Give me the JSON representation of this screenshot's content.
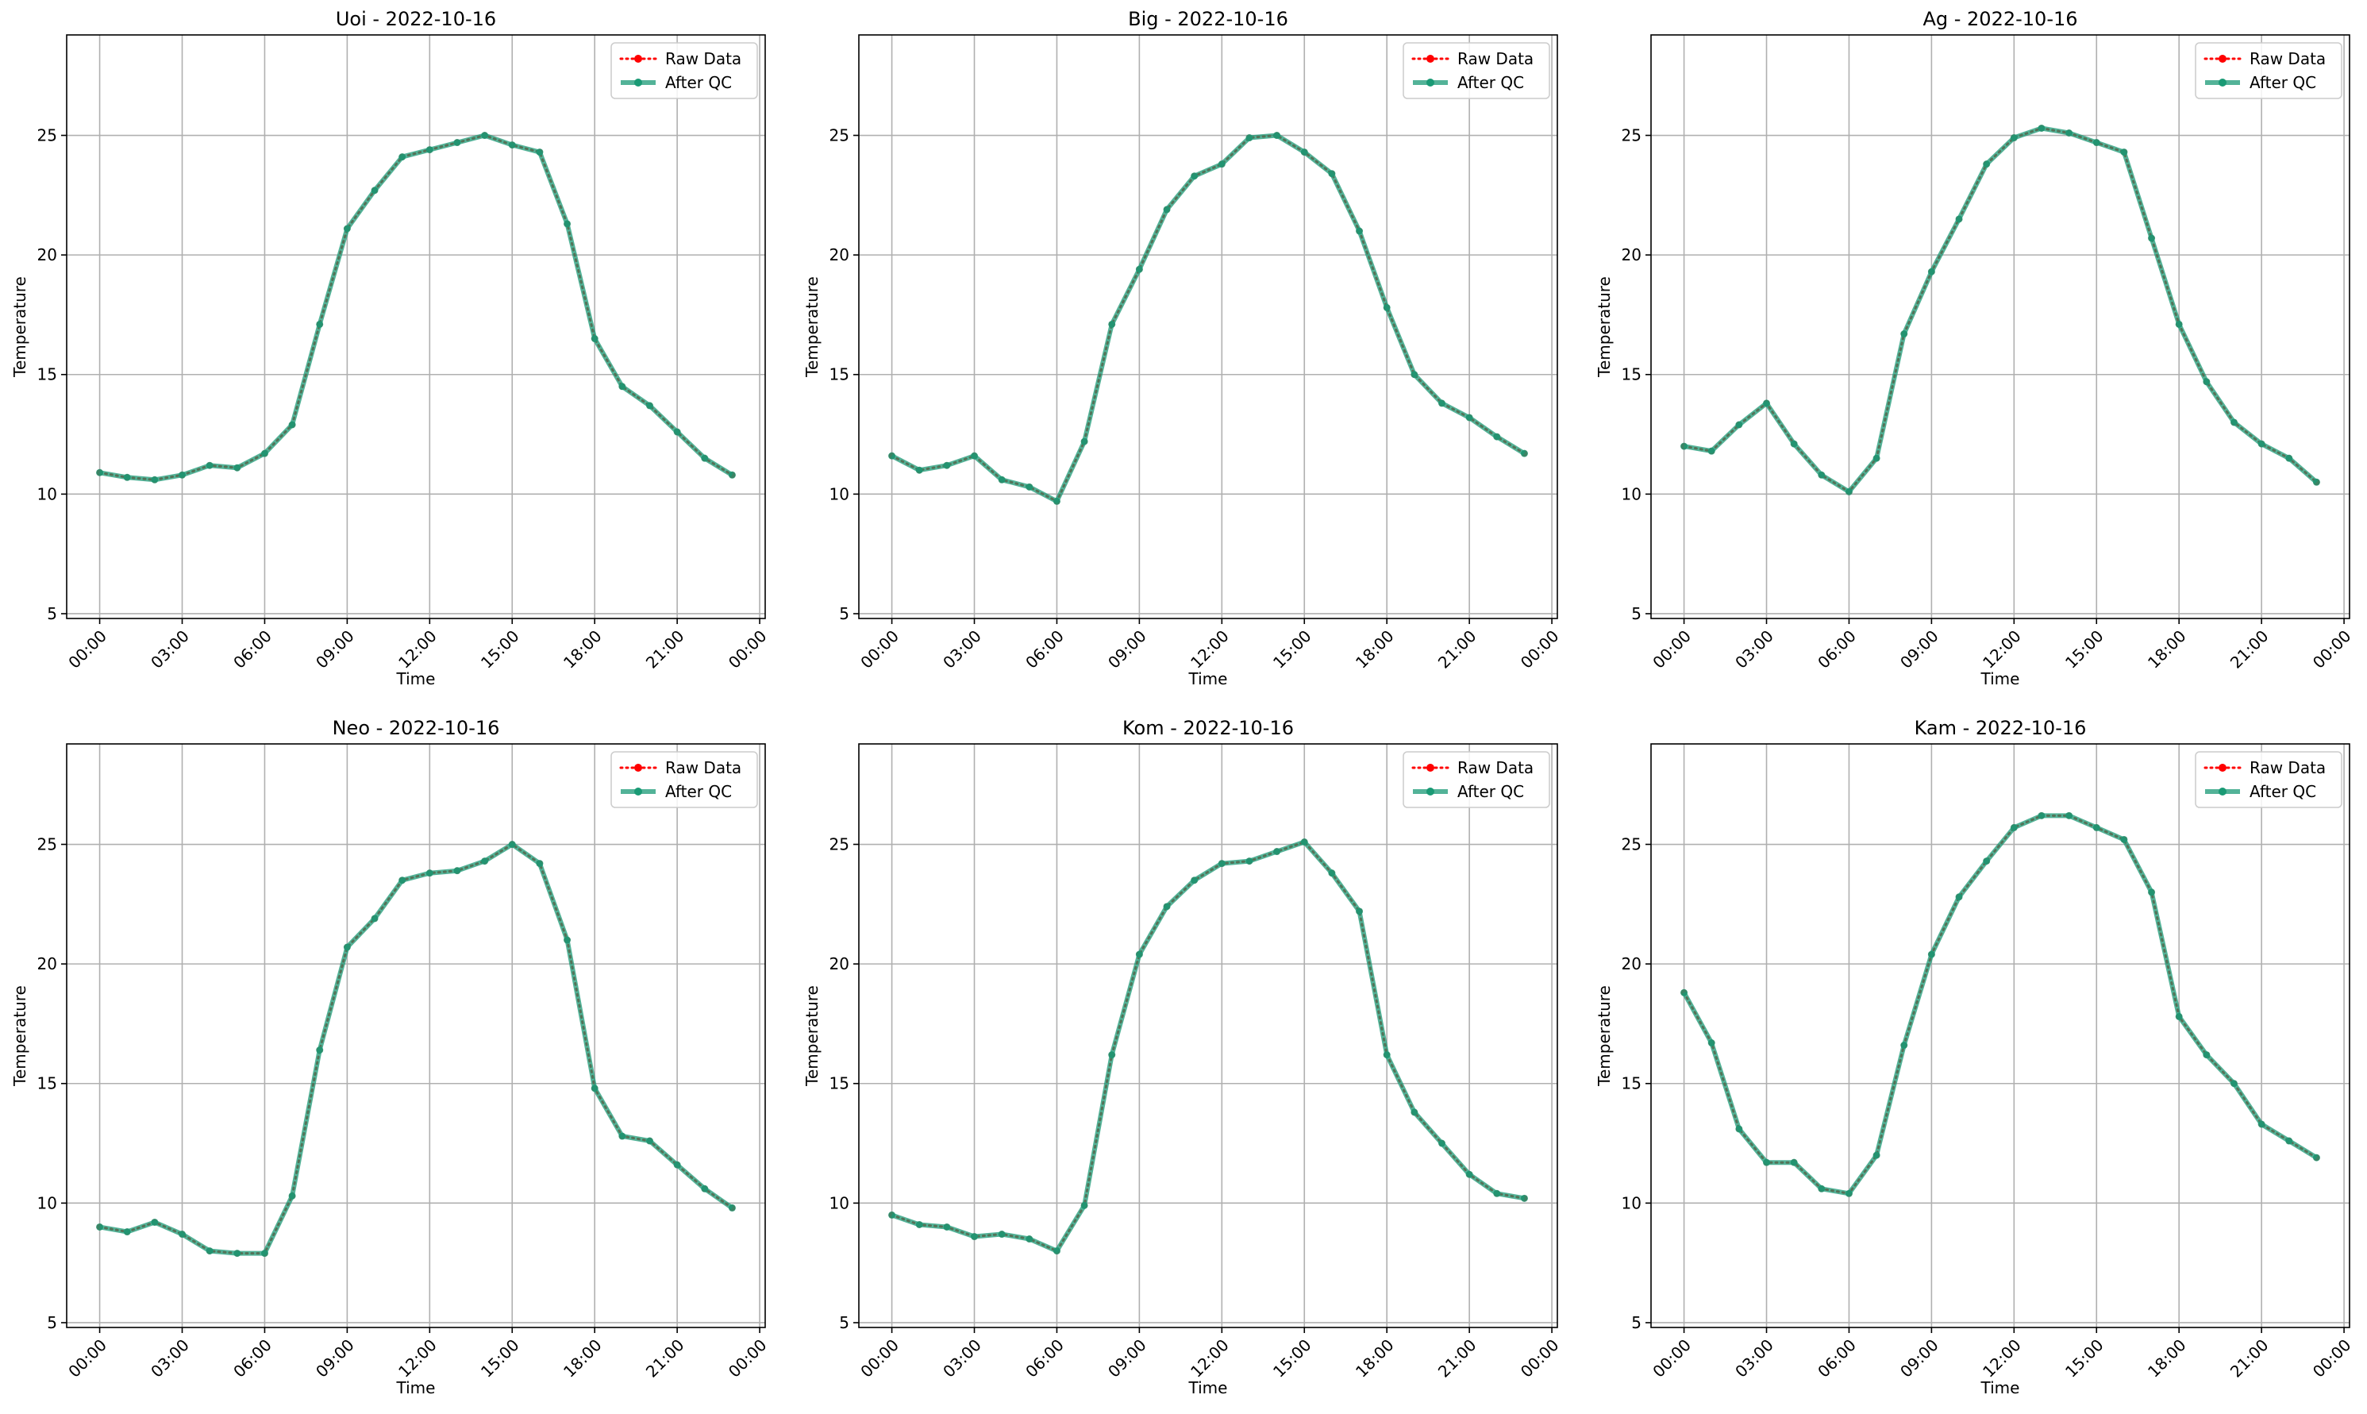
{
  "chart_data": [
    {
      "type": "line",
      "title": "Uoi - 2022-10-16",
      "xlabel": "Time",
      "ylabel": "Temperature",
      "x_ticks": [
        "00:00",
        "03:00",
        "06:00",
        "09:00",
        "12:00",
        "15:00",
        "18:00",
        "21:00",
        "00:00"
      ],
      "y_ticks": [
        "5",
        "10",
        "15",
        "20",
        "25"
      ],
      "ylim": [
        4.8,
        29.2
      ],
      "xlim_hours": [
        -1.2,
        24.2
      ],
      "grid": true,
      "legend_position": "upper-right",
      "x": [
        "00:00",
        "01:00",
        "02:00",
        "03:00",
        "04:00",
        "05:00",
        "06:00",
        "07:00",
        "08:00",
        "09:00",
        "10:00",
        "11:00",
        "12:00",
        "13:00",
        "14:00",
        "15:00",
        "16:00",
        "17:00",
        "18:00",
        "19:00",
        "20:00",
        "21:00",
        "22:00",
        "23:00"
      ],
      "series": [
        {
          "name": "Raw Data",
          "color": "#ff0000",
          "values": [
            10.9,
            10.7,
            10.6,
            10.8,
            11.2,
            11.1,
            11.7,
            12.9,
            17.1,
            21.1,
            22.7,
            24.1,
            24.4,
            24.7,
            25.0,
            24.6,
            24.3,
            21.3,
            16.5,
            14.5,
            13.7,
            12.6,
            11.5,
            10.8
          ]
        },
        {
          "name": "After QC",
          "color": "#1a9a75",
          "values": [
            10.9,
            10.7,
            10.6,
            10.8,
            11.2,
            11.1,
            11.7,
            12.9,
            17.1,
            21.1,
            22.7,
            24.1,
            24.4,
            24.7,
            25.0,
            24.6,
            24.3,
            21.3,
            16.5,
            14.5,
            13.7,
            12.6,
            11.5,
            10.8
          ]
        }
      ]
    },
    {
      "type": "line",
      "title": "Big - 2022-10-16",
      "xlabel": "Time",
      "ylabel": "Temperature",
      "x_ticks": [
        "00:00",
        "03:00",
        "06:00",
        "09:00",
        "12:00",
        "15:00",
        "18:00",
        "21:00",
        "00:00"
      ],
      "y_ticks": [
        "5",
        "10",
        "15",
        "20",
        "25"
      ],
      "ylim": [
        4.8,
        29.2
      ],
      "xlim_hours": [
        -1.2,
        24.2
      ],
      "grid": true,
      "legend_position": "upper-right",
      "x": [
        "00:00",
        "01:00",
        "02:00",
        "03:00",
        "04:00",
        "05:00",
        "06:00",
        "07:00",
        "08:00",
        "09:00",
        "10:00",
        "11:00",
        "12:00",
        "13:00",
        "14:00",
        "15:00",
        "16:00",
        "17:00",
        "18:00",
        "19:00",
        "20:00",
        "21:00",
        "22:00",
        "23:00"
      ],
      "series": [
        {
          "name": "Raw Data",
          "color": "#ff0000",
          "values": [
            11.6,
            11.0,
            11.2,
            11.6,
            10.6,
            10.3,
            9.7,
            12.2,
            17.1,
            19.4,
            21.9,
            23.3,
            23.8,
            24.9,
            25.0,
            24.3,
            23.4,
            21.0,
            17.8,
            15.0,
            13.8,
            13.2,
            12.4,
            11.7
          ]
        },
        {
          "name": "After QC",
          "color": "#1a9a75",
          "values": [
            11.6,
            11.0,
            11.2,
            11.6,
            10.6,
            10.3,
            9.7,
            12.2,
            17.1,
            19.4,
            21.9,
            23.3,
            23.8,
            24.9,
            25.0,
            24.3,
            23.4,
            21.0,
            17.8,
            15.0,
            13.8,
            13.2,
            12.4,
            11.7
          ]
        }
      ]
    },
    {
      "type": "line",
      "title": "Ag - 2022-10-16",
      "xlabel": "Time",
      "ylabel": "Temperature",
      "x_ticks": [
        "00:00",
        "03:00",
        "06:00",
        "09:00",
        "12:00",
        "15:00",
        "18:00",
        "21:00",
        "00:00"
      ],
      "y_ticks": [
        "5",
        "10",
        "15",
        "20",
        "25"
      ],
      "ylim": [
        4.8,
        29.2
      ],
      "xlim_hours": [
        -1.2,
        24.2
      ],
      "grid": true,
      "legend_position": "upper-right",
      "x": [
        "00:00",
        "01:00",
        "02:00",
        "03:00",
        "04:00",
        "05:00",
        "06:00",
        "07:00",
        "08:00",
        "09:00",
        "10:00",
        "11:00",
        "12:00",
        "13:00",
        "14:00",
        "15:00",
        "16:00",
        "17:00",
        "18:00",
        "19:00",
        "20:00",
        "21:00",
        "22:00",
        "23:00"
      ],
      "series": [
        {
          "name": "Raw Data",
          "color": "#ff0000",
          "values": [
            12.0,
            11.8,
            12.9,
            13.8,
            12.1,
            10.8,
            10.1,
            11.5,
            16.7,
            19.3,
            21.5,
            23.8,
            24.9,
            25.3,
            25.1,
            24.7,
            24.3,
            20.7,
            17.1,
            14.7,
            13.0,
            12.1,
            11.5,
            10.5
          ]
        },
        {
          "name": "After QC",
          "color": "#1a9a75",
          "values": [
            12.0,
            11.8,
            12.9,
            13.8,
            12.1,
            10.8,
            10.1,
            11.5,
            16.7,
            19.3,
            21.5,
            23.8,
            24.9,
            25.3,
            25.1,
            24.7,
            24.3,
            20.7,
            17.1,
            14.7,
            13.0,
            12.1,
            11.5,
            10.5
          ]
        }
      ]
    },
    {
      "type": "line",
      "title": "Neo - 2022-10-16",
      "xlabel": "Time",
      "ylabel": "Temperature",
      "x_ticks": [
        "00:00",
        "03:00",
        "06:00",
        "09:00",
        "12:00",
        "15:00",
        "18:00",
        "21:00",
        "00:00"
      ],
      "y_ticks": [
        "5",
        "10",
        "15",
        "20",
        "25"
      ],
      "ylim": [
        4.8,
        29.2
      ],
      "xlim_hours": [
        -1.2,
        24.2
      ],
      "grid": true,
      "legend_position": "upper-right",
      "x": [
        "00:00",
        "01:00",
        "02:00",
        "03:00",
        "04:00",
        "05:00",
        "06:00",
        "07:00",
        "08:00",
        "09:00",
        "10:00",
        "11:00",
        "12:00",
        "13:00",
        "14:00",
        "15:00",
        "16:00",
        "17:00",
        "18:00",
        "19:00",
        "20:00",
        "21:00",
        "22:00",
        "23:00"
      ],
      "series": [
        {
          "name": "Raw Data",
          "color": "#ff0000",
          "values": [
            9.0,
            8.8,
            9.2,
            8.7,
            8.0,
            7.9,
            7.9,
            10.3,
            16.4,
            20.7,
            21.9,
            23.5,
            23.8,
            23.9,
            24.3,
            25.0,
            24.2,
            21.0,
            14.8,
            12.8,
            12.6,
            11.6,
            10.6,
            9.8
          ]
        },
        {
          "name": "After QC",
          "color": "#1a9a75",
          "values": [
            9.0,
            8.8,
            9.2,
            8.7,
            8.0,
            7.9,
            7.9,
            10.3,
            16.4,
            20.7,
            21.9,
            23.5,
            23.8,
            23.9,
            24.3,
            25.0,
            24.2,
            21.0,
            14.8,
            12.8,
            12.6,
            11.6,
            10.6,
            9.8
          ]
        }
      ]
    },
    {
      "type": "line",
      "title": "Kom - 2022-10-16",
      "xlabel": "Time",
      "ylabel": "Temperature",
      "x_ticks": [
        "00:00",
        "03:00",
        "06:00",
        "09:00",
        "12:00",
        "15:00",
        "18:00",
        "21:00",
        "00:00"
      ],
      "y_ticks": [
        "5",
        "10",
        "15",
        "20",
        "25"
      ],
      "ylim": [
        4.8,
        29.2
      ],
      "xlim_hours": [
        -1.2,
        24.2
      ],
      "grid": true,
      "legend_position": "upper-right",
      "x": [
        "00:00",
        "01:00",
        "02:00",
        "03:00",
        "04:00",
        "05:00",
        "06:00",
        "07:00",
        "08:00",
        "09:00",
        "10:00",
        "11:00",
        "12:00",
        "13:00",
        "14:00",
        "15:00",
        "16:00",
        "17:00",
        "18:00",
        "19:00",
        "20:00",
        "21:00",
        "22:00",
        "23:00"
      ],
      "series": [
        {
          "name": "Raw Data",
          "color": "#ff0000",
          "values": [
            9.5,
            9.1,
            9.0,
            8.6,
            8.7,
            8.5,
            8.0,
            9.9,
            16.2,
            20.4,
            22.4,
            23.5,
            24.2,
            24.3,
            24.7,
            25.1,
            23.8,
            22.2,
            16.2,
            13.8,
            12.5,
            11.2,
            10.4,
            10.2
          ]
        },
        {
          "name": "After QC",
          "color": "#1a9a75",
          "values": [
            9.5,
            9.1,
            9.0,
            8.6,
            8.7,
            8.5,
            8.0,
            9.9,
            16.2,
            20.4,
            22.4,
            23.5,
            24.2,
            24.3,
            24.7,
            25.1,
            23.8,
            22.2,
            16.2,
            13.8,
            12.5,
            11.2,
            10.4,
            10.2
          ]
        }
      ]
    },
    {
      "type": "line",
      "title": "Kam - 2022-10-16",
      "xlabel": "Time",
      "ylabel": "Temperature",
      "x_ticks": [
        "00:00",
        "03:00",
        "06:00",
        "09:00",
        "12:00",
        "15:00",
        "18:00",
        "21:00",
        "00:00"
      ],
      "y_ticks": [
        "5",
        "10",
        "15",
        "20",
        "25"
      ],
      "ylim": [
        4.8,
        29.2
      ],
      "xlim_hours": [
        -1.2,
        24.2
      ],
      "grid": true,
      "legend_position": "upper-right",
      "x": [
        "00:00",
        "01:00",
        "02:00",
        "03:00",
        "04:00",
        "05:00",
        "06:00",
        "07:00",
        "08:00",
        "09:00",
        "10:00",
        "11:00",
        "12:00",
        "13:00",
        "14:00",
        "15:00",
        "16:00",
        "17:00",
        "18:00",
        "19:00",
        "20:00",
        "21:00",
        "22:00",
        "23:00"
      ],
      "series": [
        {
          "name": "Raw Data",
          "color": "#ff0000",
          "values": [
            18.8,
            16.7,
            13.1,
            11.7,
            11.7,
            10.6,
            10.4,
            12.0,
            16.6,
            20.4,
            22.8,
            24.3,
            25.7,
            26.2,
            26.2,
            25.7,
            25.2,
            23.0,
            17.8,
            16.2,
            15.0,
            13.3,
            12.6,
            11.9
          ]
        },
        {
          "name": "After QC",
          "color": "#1a9a75",
          "values": [
            18.8,
            16.7,
            13.1,
            11.7,
            11.7,
            10.6,
            10.4,
            12.0,
            16.6,
            20.4,
            22.8,
            24.3,
            25.7,
            26.2,
            26.2,
            25.7,
            25.2,
            23.0,
            17.8,
            16.2,
            15.0,
            13.3,
            12.6,
            11.9
          ]
        }
      ]
    }
  ]
}
